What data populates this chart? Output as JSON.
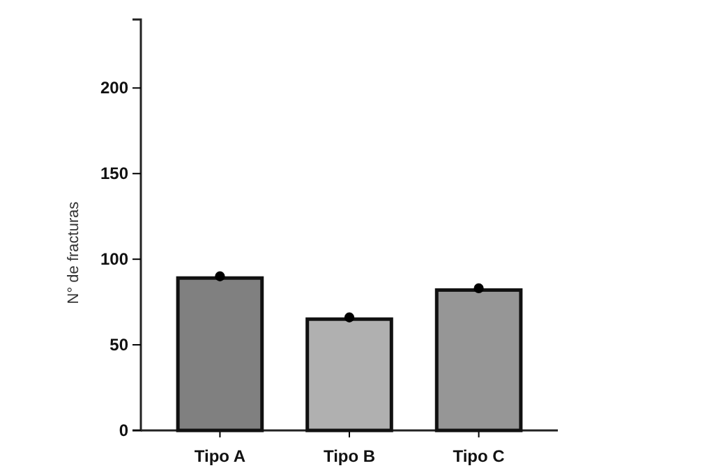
{
  "chart_data": {
    "type": "bar",
    "ylabel": "N° de fracturas",
    "categories": [
      "Tipo A",
      "Tipo B",
      "Tipo C"
    ],
    "series": [
      {
        "values": [
          89,
          65,
          82
        ],
        "colors": [
          "#808080",
          "#b0b0b0",
          "#969696"
        ]
      },
      {
        "type": "scatter",
        "x": [
          "Tipo A",
          "Tipo B",
          "Tipo C"
        ],
        "values": [
          90,
          66,
          83
        ],
        "color": "#000000",
        "marker": "circle"
      }
    ],
    "ylim": [
      0,
      240
    ],
    "yticks": [
      0,
      50,
      100,
      150,
      200
    ],
    "grid": false
  }
}
